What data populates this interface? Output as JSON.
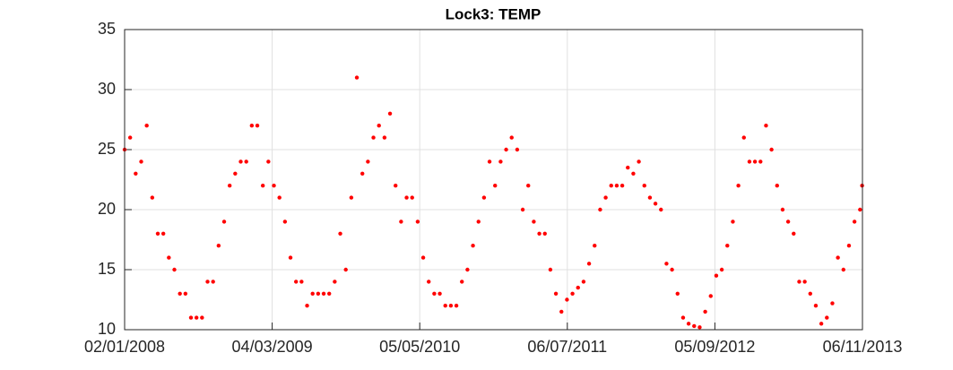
{
  "chart_data": {
    "type": "scatter",
    "title": "Lock3: TEMP",
    "color": "#ff0000",
    "grid": true,
    "x": [
      "2008-01-02",
      "2008-01-18",
      "2008-02-03",
      "2008-02-19",
      "2008-03-06",
      "2008-03-22",
      "2008-04-07",
      "2008-04-23",
      "2008-05-09",
      "2008-05-25",
      "2008-06-10",
      "2008-06-26",
      "2008-07-12",
      "2008-07-28",
      "2008-08-13",
      "2008-08-29",
      "2008-09-14",
      "2008-09-30",
      "2008-10-16",
      "2008-11-01",
      "2008-11-17",
      "2008-12-03",
      "2008-12-19",
      "2009-01-04",
      "2009-01-20",
      "2009-02-05",
      "2009-02-21",
      "2009-03-09",
      "2009-03-25",
      "2009-04-10",
      "2009-04-26",
      "2009-05-12",
      "2009-05-28",
      "2009-06-13",
      "2009-06-29",
      "2009-07-15",
      "2009-07-31",
      "2009-08-16",
      "2009-09-01",
      "2009-09-17",
      "2009-10-03",
      "2009-10-19",
      "2009-11-04",
      "2009-11-20",
      "2009-12-06",
      "2009-12-22",
      "2010-01-07",
      "2010-01-23",
      "2010-02-08",
      "2010-02-24",
      "2010-03-12",
      "2010-03-28",
      "2010-04-13",
      "2010-04-29",
      "2010-05-15",
      "2010-05-31",
      "2010-06-16",
      "2010-07-02",
      "2010-07-18",
      "2010-08-03",
      "2010-08-19",
      "2010-09-04",
      "2010-09-20",
      "2010-10-06",
      "2010-10-22",
      "2010-11-07",
      "2010-11-23",
      "2010-12-09",
      "2010-12-25",
      "2011-01-10",
      "2011-01-26",
      "2011-02-11",
      "2011-02-27",
      "2011-03-15",
      "2011-03-31",
      "2011-04-16",
      "2011-05-02",
      "2011-05-18",
      "2011-06-03",
      "2011-06-19",
      "2011-07-05",
      "2011-07-21",
      "2011-08-06",
      "2011-08-22",
      "2011-09-07",
      "2011-09-23",
      "2011-10-09",
      "2011-10-25",
      "2011-11-10",
      "2011-11-26",
      "2011-12-12",
      "2011-12-28",
      "2012-01-13",
      "2012-01-29",
      "2012-02-14",
      "2012-03-01",
      "2012-03-17",
      "2012-04-02",
      "2012-04-18",
      "2012-05-04",
      "2012-05-20",
      "2012-06-05",
      "2012-06-21",
      "2012-07-07",
      "2012-07-23",
      "2012-08-08",
      "2012-08-24",
      "2012-09-09",
      "2012-09-25",
      "2012-10-11",
      "2012-10-27",
      "2012-11-12",
      "2012-11-28",
      "2012-12-14",
      "2012-12-30",
      "2013-01-15",
      "2013-01-31",
      "2013-02-16",
      "2013-03-04",
      "2013-03-20",
      "2013-04-05",
      "2013-04-21",
      "2013-05-07",
      "2013-05-23",
      "2013-06-08",
      "2013-06-24",
      "2013-07-10",
      "2013-07-26",
      "2013-08-11",
      "2013-08-27",
      "2013-09-12",
      "2013-09-28",
      "2013-10-14",
      "2013-10-30",
      "2013-11-05"
    ],
    "values": [
      25,
      26,
      23,
      24,
      27,
      21,
      18,
      18,
      16,
      15,
      13,
      13,
      11,
      11,
      11,
      14,
      14,
      17,
      19,
      22,
      23,
      24,
      24,
      27,
      27,
      22,
      24,
      22,
      21,
      19,
      16,
      14,
      14,
      12,
      13,
      13,
      13,
      13,
      14,
      18,
      15,
      21,
      31,
      23,
      24,
      26,
      27,
      26,
      28,
      22,
      19,
      21,
      21,
      19,
      16,
      14,
      13,
      13,
      12,
      12,
      12,
      14,
      15,
      17,
      19,
      21,
      24,
      22,
      24,
      25,
      26,
      25,
      20,
      22,
      19,
      18,
      18,
      15,
      13,
      11.5,
      12.5,
      13,
      13.5,
      14,
      15.5,
      17,
      20,
      21,
      22,
      22,
      22,
      23.5,
      23,
      24,
      22,
      21,
      20.5,
      20,
      15.5,
      15,
      13,
      11,
      10.5,
      10.3,
      10.2,
      11.5,
      12.8,
      14.5,
      15,
      17,
      19,
      22,
      26,
      24,
      24,
      24,
      27,
      25,
      22,
      20,
      19,
      18,
      14,
      14,
      13,
      12,
      10.5,
      11,
      12.2,
      16,
      15,
      17,
      19,
      20,
      22
    ],
    "xlim": [
      "2008-01-02",
      "2013-11-06"
    ],
    "xticks": [
      {
        "value": "2008-01-02",
        "label": "02/01/2008"
      },
      {
        "value": "2009-03-04",
        "label": "04/03/2009"
      },
      {
        "value": "2010-05-05",
        "label": "05/05/2010"
      },
      {
        "value": "2011-07-06",
        "label": "06/07/2011"
      },
      {
        "value": "2012-09-05",
        "label": "05/09/2012"
      },
      {
        "value": "2013-11-06",
        "label": "06/11/2013"
      }
    ],
    "ylim": [
      10,
      35
    ],
    "yticks": [
      10,
      15,
      20,
      25,
      30,
      35
    ]
  }
}
